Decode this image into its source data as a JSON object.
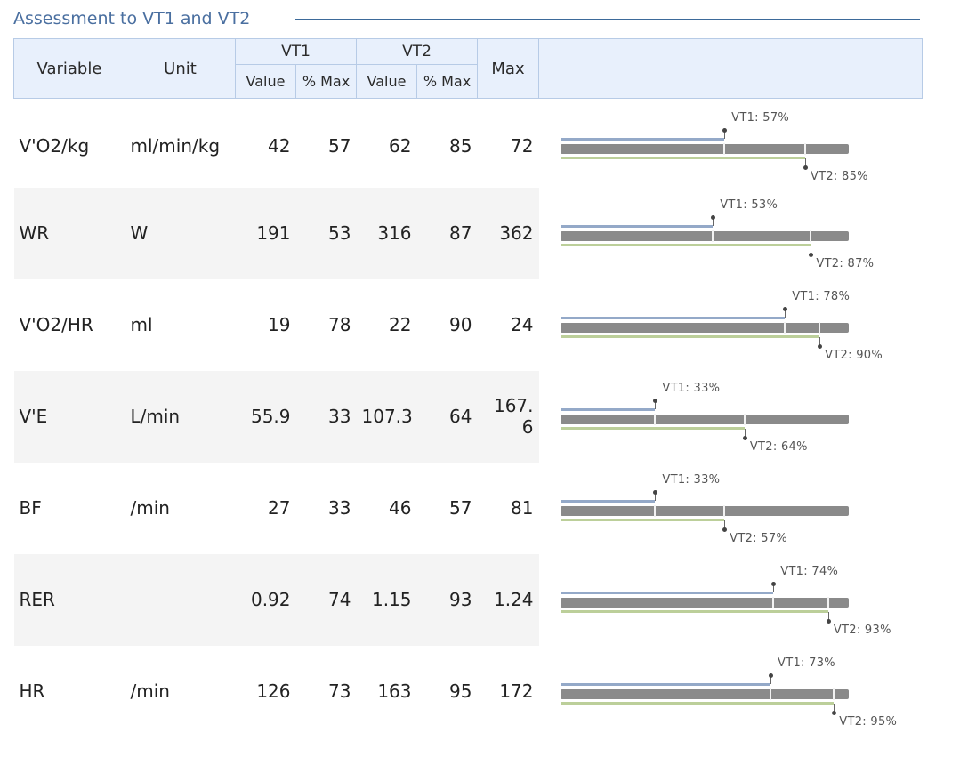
{
  "section_title": "Assessment to VT1 and VT2",
  "headers": {
    "variable": "Variable",
    "unit": "Unit",
    "vt1": "VT1",
    "vt2": "VT2",
    "max": "Max",
    "value": "Value",
    "pct_max": "% Max"
  },
  "rows": [
    {
      "variable": "V'O2/kg",
      "unit": "ml/min/kg",
      "vt1_value": "42",
      "vt1_pct": "57",
      "vt2_value": "62",
      "vt2_pct": "85",
      "max": "72",
      "vt1_label": "VT1: 57%",
      "vt2_label": "VT2: 85%"
    },
    {
      "variable": "WR",
      "unit": "W",
      "vt1_value": "191",
      "vt1_pct": "53",
      "vt2_value": "316",
      "vt2_pct": "87",
      "max": "362",
      "vt1_label": "VT1: 53%",
      "vt2_label": "VT2: 87%"
    },
    {
      "variable": "V'O2/HR",
      "unit": "ml",
      "vt1_value": "19",
      "vt1_pct": "78",
      "vt2_value": "22",
      "vt2_pct": "90",
      "max": "24",
      "vt1_label": "VT1: 78%",
      "vt2_label": "VT2: 90%"
    },
    {
      "variable": "V'E",
      "unit": "L/min",
      "vt1_value": "55.9",
      "vt1_pct": "33",
      "vt2_value": "107.3",
      "vt2_pct": "64",
      "max": "167.6",
      "vt1_label": "VT1: 33%",
      "vt2_label": "VT2: 64%"
    },
    {
      "variable": "BF",
      "unit": "/min",
      "vt1_value": "27",
      "vt1_pct": "33",
      "vt2_value": "46",
      "vt2_pct": "57",
      "max": "81",
      "vt1_label": "VT1: 33%",
      "vt2_label": "VT2: 57%"
    },
    {
      "variable": "RER",
      "unit": "",
      "vt1_value": "0.92",
      "vt1_pct": "74",
      "vt2_value": "1.15",
      "vt2_pct": "93",
      "max": "1.24",
      "vt1_label": "VT1: 74%",
      "vt2_label": "VT2: 93%"
    },
    {
      "variable": "HR",
      "unit": "/min",
      "vt1_value": "126",
      "vt1_pct": "73",
      "vt2_value": "163",
      "vt2_pct": "95",
      "max": "172",
      "vt1_label": "VT1: 73%",
      "vt2_label": "VT2: 95%"
    }
  ],
  "colors": {
    "title": "#4a6fa0",
    "header_bg": "#e8f0fc",
    "vt1_bar": "#94a9c8",
    "vt2_bar": "#bccf9a",
    "max_bar": "#8a8a8a"
  }
}
